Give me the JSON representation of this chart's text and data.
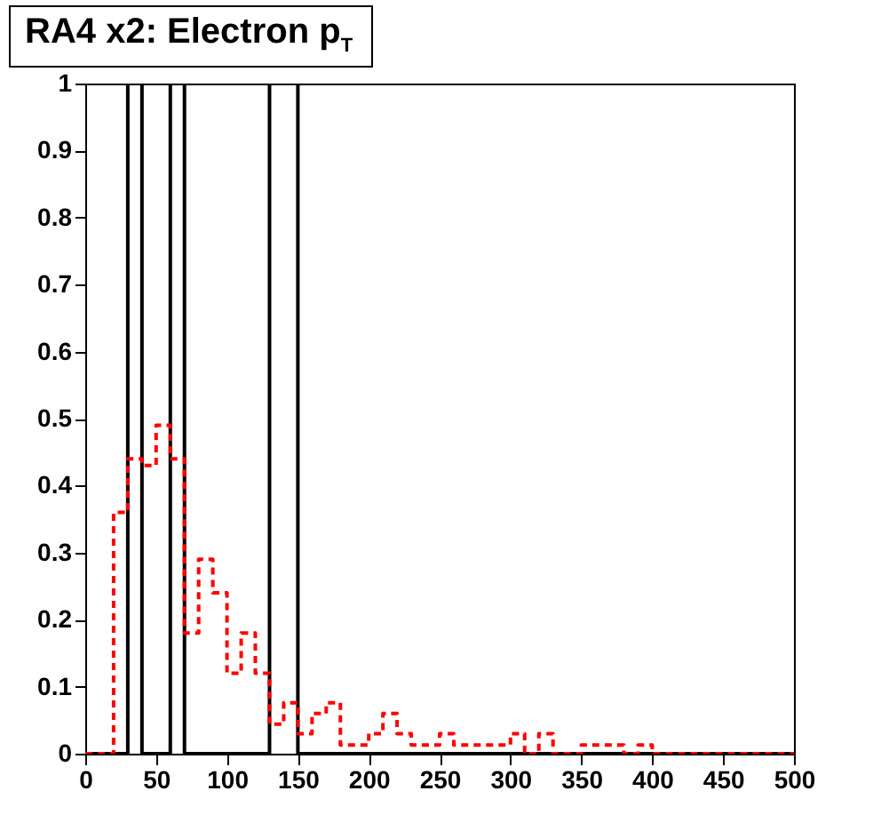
{
  "chart_data": {
    "type": "histogram",
    "title": "RA4 x2: Electron p$_{T}$",
    "bins": [
      0,
      10,
      20,
      30,
      40,
      50,
      60,
      70,
      80,
      90,
      100,
      110,
      120,
      130,
      140,
      150,
      160,
      170,
      180,
      190,
      200,
      210,
      220,
      230,
      240,
      250,
      260,
      270,
      280,
      290,
      300,
      310,
      320,
      330,
      340,
      350,
      360,
      370,
      380,
      390,
      400,
      410,
      420,
      430,
      440,
      450,
      460,
      470,
      480,
      490,
      500
    ],
    "series": [
      {
        "color": "#000000",
        "line_style": "solid",
        "values": [
          0,
          0,
          0,
          1,
          0,
          0,
          1,
          0,
          0,
          0,
          0,
          0,
          0,
          1,
          1,
          0,
          0,
          0,
          0,
          0,
          0,
          0,
          0,
          0,
          0,
          0,
          0,
          0,
          0,
          0,
          0,
          0,
          0,
          0,
          0,
          0,
          0,
          0,
          0,
          0,
          0,
          0,
          0,
          0,
          0,
          0,
          0,
          0,
          0,
          0
        ]
      },
      {
        "color": "#ff0000",
        "line_style": "dashed",
        "values": [
          0,
          0,
          0.36,
          0.44,
          0.43,
          0.49,
          0.44,
          0.18,
          0.29,
          0.24,
          0.12,
          0.18,
          0.12,
          0.044,
          0.076,
          0.03,
          0.06,
          0.076,
          0.013,
          0.013,
          0.03,
          0.06,
          0.03,
          0.013,
          0.013,
          0.03,
          0.013,
          0.013,
          0.013,
          0.013,
          0.03,
          0,
          0.03,
          0,
          0,
          0.013,
          0.013,
          0.013,
          0,
          0.013,
          0,
          0,
          0,
          0,
          0,
          0,
          0,
          0,
          0,
          0
        ]
      }
    ],
    "xlim": [
      0,
      500
    ],
    "ylim": [
      0,
      1
    ],
    "xticks": [
      0,
      50,
      100,
      150,
      200,
      250,
      300,
      350,
      400,
      450,
      500
    ],
    "yticks": [
      0,
      0.1,
      0.2,
      0.3,
      0.4,
      0.5,
      0.6,
      0.7,
      0.8,
      0.9,
      1
    ]
  }
}
